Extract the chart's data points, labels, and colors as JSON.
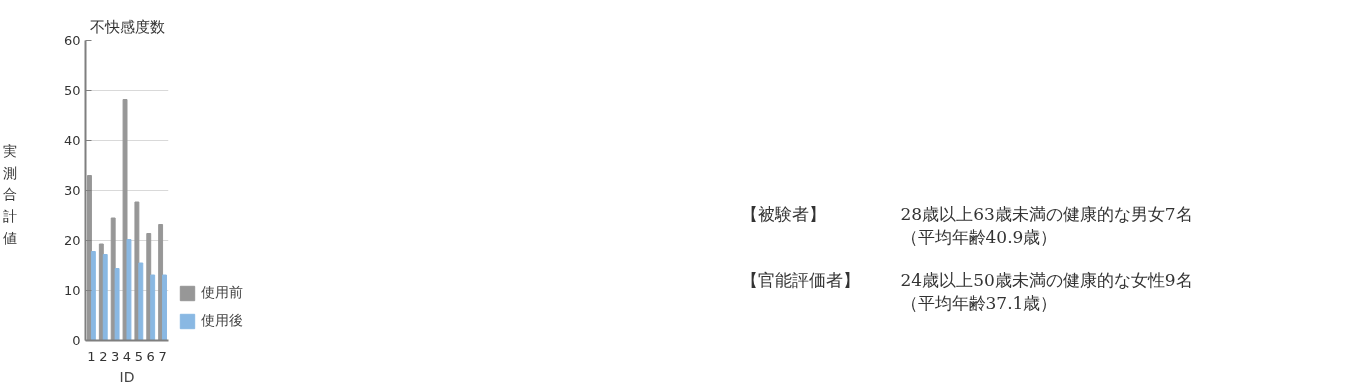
{
  "chart_data": {
    "type": "bar",
    "title": "不快感度数",
    "xlabel": "ID",
    "ylabel": "実測合計値",
    "categories": [
      "1",
      "2",
      "3",
      "4",
      "5",
      "6",
      "7"
    ],
    "series": [
      {
        "name": "使用前",
        "color": "#979797",
        "values": [
          33.0,
          19.3,
          24.5,
          48.2,
          27.7,
          21.4,
          23.2
        ]
      },
      {
        "name": "使用後",
        "color": "#89b8e3",
        "values": [
          17.8,
          17.2,
          14.4,
          20.2,
          15.5,
          13.1,
          13.1
        ]
      }
    ],
    "ylim": [
      0,
      60
    ],
    "yticks": [
      0,
      10,
      20,
      30,
      40,
      50,
      60
    ],
    "grid": "y",
    "legend": "right",
    "annotations": [
      "【被験者】",
      "28歳以上63歳未満の健康的な男女7名",
      "（平均年齢40.9歳）",
      "【官能評価者】",
      "24歳以上50歳未満の健康的な女性9名",
      "（平均年齢37.1歳）"
    ]
  }
}
